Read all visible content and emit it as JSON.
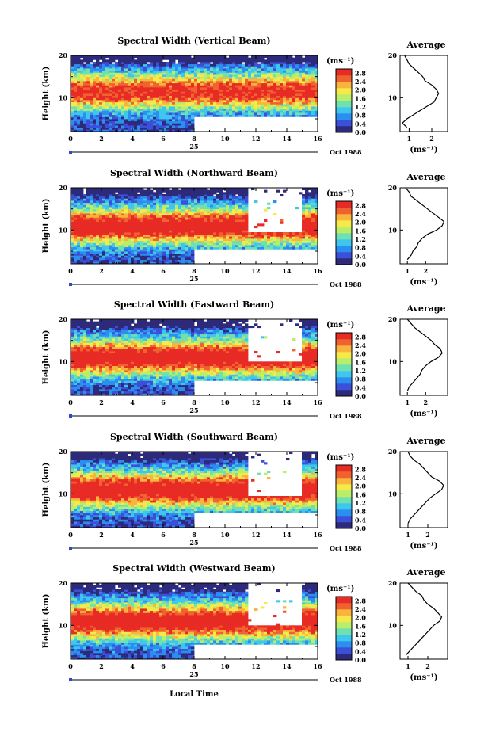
{
  "figure": {
    "bottom_xlabel": "Local Time",
    "date_label": "Oct 1988",
    "day_label": "25",
    "ylabel": "Height (km)",
    "colorbar_unit": "(ms⁻¹)",
    "avg_title": "Average",
    "avg_unit": "(ms⁻¹)"
  },
  "chart_data": [
    {
      "type": "heatmap",
      "title": "Spectral Width (Vertical Beam)",
      "x_ticks": [
        "0",
        "2",
        "4",
        "6",
        "8",
        "10",
        "12",
        "14",
        "16"
      ],
      "xlim": [
        0,
        16
      ],
      "y_ticks": [
        "10",
        "20"
      ],
      "ylim": [
        2,
        20
      ],
      "colorbar_ticks": [
        "0.0",
        "0.4",
        "0.8",
        "1.2",
        "1.6",
        "2.0",
        "2.4",
        "2.8"
      ],
      "clim": [
        0,
        3.0
      ],
      "gap": null,
      "average": {
        "xlim": [
          0.6,
          2.7
        ],
        "x_ticks": [
          "1",
          "2"
        ],
        "y_ticks": [
          "10",
          "20"
        ],
        "heights": [
          3,
          4,
          5,
          6,
          7,
          8,
          9,
          10,
          11,
          12,
          13,
          14,
          15,
          16,
          17,
          18,
          19,
          20
        ],
        "values": [
          0.9,
          0.7,
          0.9,
          1.2,
          1.5,
          1.8,
          2.1,
          2.2,
          2.3,
          2.2,
          2.0,
          1.7,
          1.6,
          1.4,
          1.2,
          1.0,
          0.9,
          0.8
        ]
      }
    },
    {
      "type": "heatmap",
      "title": "Spectral Width (Northward Beam)",
      "x_ticks": [
        "0",
        "2",
        "4",
        "6",
        "8",
        "10",
        "12",
        "14",
        "16"
      ],
      "xlim": [
        0,
        16
      ],
      "y_ticks": [
        "10",
        "20"
      ],
      "ylim": [
        2,
        20
      ],
      "colorbar_ticks": [
        "0.0",
        "0.4",
        "0.8",
        "1.2",
        "1.6",
        "2.0",
        "2.4",
        "2.8"
      ],
      "clim": [
        0,
        3.0
      ],
      "gap": {
        "t0": 11.5,
        "t1": 15.0,
        "h0": 9.5,
        "h1": 20
      },
      "average": {
        "xlim": [
          0.6,
          3.2
        ],
        "x_ticks": [
          "1",
          "2"
        ],
        "y_ticks": [
          "10",
          "20"
        ],
        "heights": [
          3,
          4,
          5,
          6,
          7,
          8,
          9,
          10,
          11,
          12,
          13,
          14,
          15,
          16,
          17,
          18,
          19,
          20
        ],
        "values": [
          1.0,
          1.2,
          1.3,
          1.5,
          1.6,
          1.8,
          2.1,
          2.6,
          2.9,
          3.0,
          2.7,
          2.4,
          2.1,
          1.8,
          1.5,
          1.2,
          1.1,
          0.9
        ]
      }
    },
    {
      "type": "heatmap",
      "title": "Spectral Width (Eastward Beam)",
      "x_ticks": [
        "0",
        "2",
        "4",
        "6",
        "8",
        "10",
        "12",
        "14",
        "16"
      ],
      "xlim": [
        0,
        16
      ],
      "y_ticks": [
        "10",
        "20"
      ],
      "ylim": [
        2,
        20
      ],
      "colorbar_ticks": [
        "0.0",
        "0.4",
        "0.8",
        "1.2",
        "1.6",
        "2.0",
        "2.4",
        "2.8"
      ],
      "clim": [
        0,
        3.0
      ],
      "gap": {
        "t0": 11.5,
        "t1": 15.0,
        "h0": 10.0,
        "h1": 20
      },
      "average": {
        "xlim": [
          0.6,
          3.2
        ],
        "x_ticks": [
          "1",
          "2"
        ],
        "y_ticks": [
          "10",
          "20"
        ],
        "heights": [
          3,
          4,
          5,
          6,
          7,
          8,
          9,
          10,
          11,
          12,
          13,
          14,
          15,
          16,
          17,
          18,
          19,
          20
        ],
        "values": [
          1.0,
          1.1,
          1.3,
          1.5,
          1.7,
          1.8,
          2.0,
          2.3,
          2.7,
          2.9,
          2.8,
          2.5,
          2.3,
          2.0,
          1.7,
          1.4,
          1.2,
          1.0
        ]
      }
    },
    {
      "type": "heatmap",
      "title": "Spectral Width (Southward Beam)",
      "x_ticks": [
        "0",
        "2",
        "4",
        "6",
        "8",
        "10",
        "12",
        "14",
        "16"
      ],
      "xlim": [
        0,
        16
      ],
      "y_ticks": [
        "10",
        "20"
      ],
      "ylim": [
        2,
        20
      ],
      "colorbar_ticks": [
        "0.0",
        "0.4",
        "0.8",
        "1.2",
        "1.6",
        "2.0",
        "2.4",
        "2.8"
      ],
      "clim": [
        0,
        3.0
      ],
      "gap": {
        "t0": 11.5,
        "t1": 15.0,
        "h0": 9.5,
        "h1": 20
      },
      "average": {
        "xlim": [
          0.6,
          3.0
        ],
        "x_ticks": [
          "1",
          "2"
        ],
        "y_ticks": [
          "10",
          "20"
        ],
        "heights": [
          3,
          4,
          5,
          6,
          7,
          8,
          9,
          10,
          11,
          12,
          13,
          14,
          15,
          16,
          17,
          18,
          19,
          20
        ],
        "values": [
          1.0,
          1.1,
          1.3,
          1.5,
          1.7,
          1.9,
          2.1,
          2.4,
          2.7,
          2.8,
          2.6,
          2.2,
          2.0,
          1.8,
          1.6,
          1.3,
          1.1,
          1.0
        ]
      }
    },
    {
      "type": "heatmap",
      "title": "Spectral Width (Westward Beam)",
      "x_ticks": [
        "0",
        "2",
        "4",
        "6",
        "8",
        "10",
        "12",
        "14",
        "16"
      ],
      "xlim": [
        0,
        16
      ],
      "y_ticks": [
        "10",
        "20"
      ],
      "ylim": [
        2,
        20
      ],
      "colorbar_ticks": [
        "0.0",
        "0.4",
        "0.8",
        "1.2",
        "1.6",
        "2.0",
        "2.4",
        "2.8"
      ],
      "clim": [
        0,
        3.0
      ],
      "gap": {
        "t0": 11.5,
        "t1": 15.0,
        "h0": 10.0,
        "h1": 20
      },
      "average": {
        "xlim": [
          0.6,
          3.0
        ],
        "x_ticks": [
          "1",
          "2"
        ],
        "y_ticks": [
          "10",
          "20"
        ],
        "heights": [
          3,
          4,
          5,
          6,
          7,
          8,
          9,
          10,
          11,
          12,
          13,
          14,
          15,
          16,
          17,
          18,
          19,
          20
        ],
        "values": [
          0.9,
          1.1,
          1.3,
          1.5,
          1.7,
          1.9,
          2.1,
          2.3,
          2.6,
          2.7,
          2.5,
          2.3,
          2.0,
          1.8,
          1.7,
          1.4,
          1.2,
          1.0
        ]
      }
    }
  ],
  "colors": {
    "colormap": [
      "#2d2a7a",
      "#3b4fd8",
      "#2b8ff0",
      "#3fc6ef",
      "#6fe0b0",
      "#b9ee6a",
      "#f6e94a",
      "#f8b43c",
      "#f0622f",
      "#e82b24"
    ],
    "line": "#000000",
    "marker": "#2a4cc8"
  }
}
